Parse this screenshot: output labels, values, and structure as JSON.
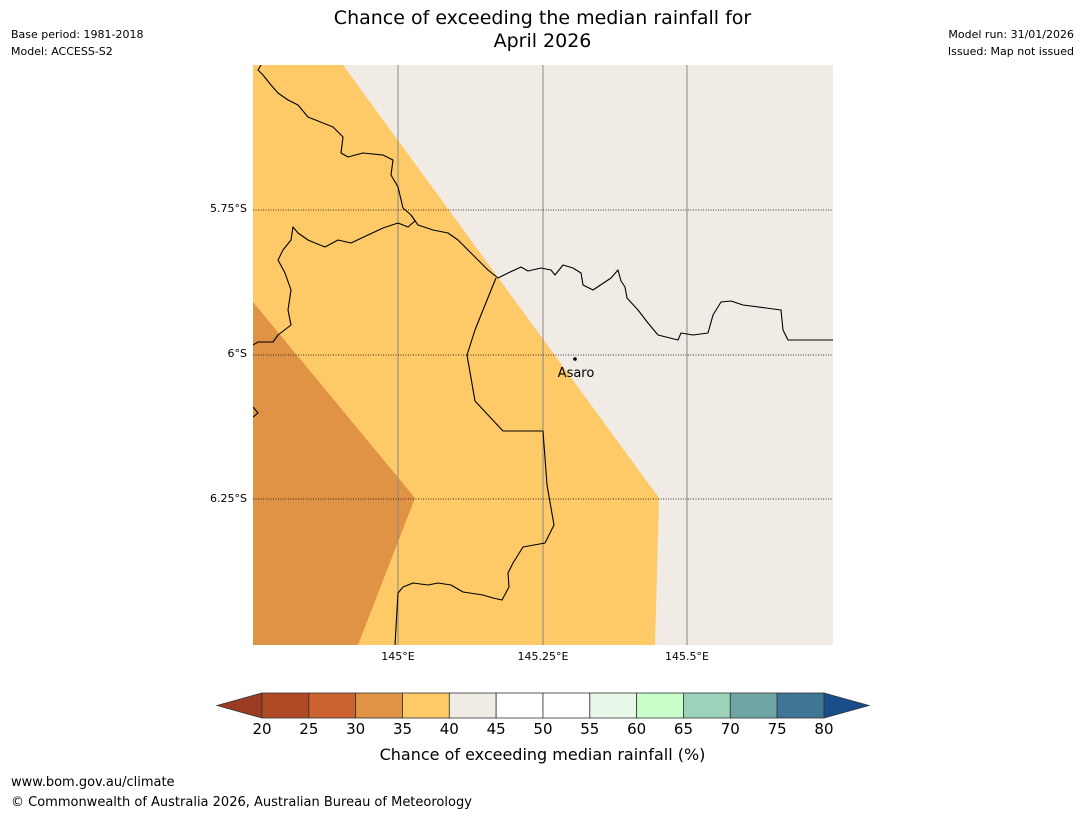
{
  "header": {
    "title": "Chance of exceeding the median rainfall for\nApril 2026",
    "base_period": "Base period: 1981-2018",
    "model": "Model: ACCESS-S2",
    "model_run": "Model run: 31/01/2026",
    "issued": "Issued: Map not issued"
  },
  "map": {
    "lat_labels": [
      "5.75°S",
      "6°S",
      "6.25°S"
    ],
    "lon_labels": [
      "145°E",
      "145.25°E",
      "145.5°E"
    ],
    "place": "Asaro"
  },
  "colorbar": {
    "title": "Chance of exceeding median rainfall (%)",
    "ticks": [
      "20",
      "25",
      "30",
      "35",
      "40",
      "45",
      "50",
      "55",
      "60",
      "65",
      "70",
      "75",
      "80"
    ],
    "colors": [
      "#9b3b22",
      "#b04a25",
      "#cc6130",
      "#e09245",
      "#fdca67",
      "#f0ebe5",
      "#ffffff",
      "#ffffff",
      "#e8f7e8",
      "#c9ffca",
      "#9dd1ba",
      "#6fa6a5",
      "#3f7696",
      "#184f8a"
    ],
    "zone_colors": {
      "band_30_35": "#e09245",
      "band_35_40": "#fdca67",
      "band_40_45": "#f0ebe5"
    }
  },
  "footer": {
    "url": "www.bom.gov.au/climate",
    "copyright": "© Commonwealth of Australia 2026, Australian Bureau of Meteorology"
  }
}
